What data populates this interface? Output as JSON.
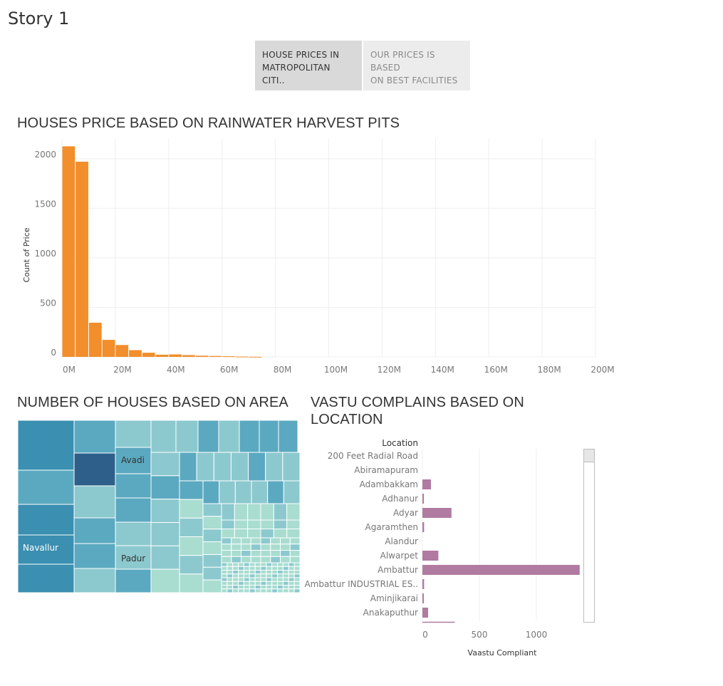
{
  "story": {
    "title": "Story 1",
    "tabs": [
      {
        "label": "HOUSE PRICES IN\nMATROPOLITAN CITI..",
        "active": true
      },
      {
        "label": "OUR PRICES IS BASED\nON BEST FACILITIES",
        "active": false
      }
    ]
  },
  "titles": {
    "histogram": "HOUSES PRICE BASED ON RAINWATER HARVEST PITS",
    "treemap": "NUMBER OF HOUSES BASED ON AREA",
    "vastu": "VASTU COMPLAINS BASED ON\nLOCATION"
  },
  "colors": {
    "histogram_bar": "#f28e2b",
    "vastu_bar": "#b07aa1",
    "treemap_scale": [
      "#a8ddd0",
      "#8cc9cf",
      "#5ba9c0",
      "#3b8fb0",
      "#2d5f8a"
    ]
  },
  "chart_data": [
    {
      "type": "bar",
      "title": "HOUSES PRICE BASED ON RAINWATER HARVEST PITS",
      "xlabel": "",
      "ylabel": "Count of Price",
      "xlim": [
        0,
        200
      ],
      "ylim": [
        0,
        2200
      ],
      "x_ticks": [
        "0M",
        "20M",
        "40M",
        "60M",
        "80M",
        "100M",
        "120M",
        "140M",
        "160M",
        "180M",
        "200M"
      ],
      "y_ticks": [
        0,
        500,
        1000,
        1500,
        2000
      ],
      "bin_width_millions": 5,
      "bin_starts_millions": [
        0,
        5,
        10,
        15,
        20,
        25,
        30,
        35,
        40,
        45,
        50,
        55,
        60,
        65,
        70,
        75
      ],
      "values": [
        2125,
        1970,
        345,
        172,
        120,
        68,
        42,
        22,
        25,
        18,
        12,
        9,
        7,
        3,
        1,
        4
      ]
    },
    {
      "type": "treemap",
      "title": "NUMBER OF HOUSES BASED ON AREA",
      "labels": [
        "Navallur",
        "Avadi",
        "Padur"
      ]
    },
    {
      "type": "bar",
      "orientation": "horizontal",
      "title": "VASTU COMPLAINS BASED ON LOCATION",
      "row_header": "Location",
      "xlabel": "Vaastu Compliant",
      "xlim": [
        0,
        1400
      ],
      "x_ticks": [
        0,
        500,
        1000
      ],
      "categories": [
        "200 Feet Radial Road",
        "Abiramapuram",
        "Adambakkam",
        "Adhanur",
        "Adyar",
        "Agaramthen",
        "Alandur",
        "Alwarpet",
        "Ambattur",
        "Ambattur INDUSTRIAL ES..",
        "Aminjikarai",
        "Anakaputhur"
      ],
      "values": [
        0,
        0,
        75,
        10,
        255,
        15,
        0,
        140,
        1380,
        15,
        10,
        50
      ]
    }
  ]
}
